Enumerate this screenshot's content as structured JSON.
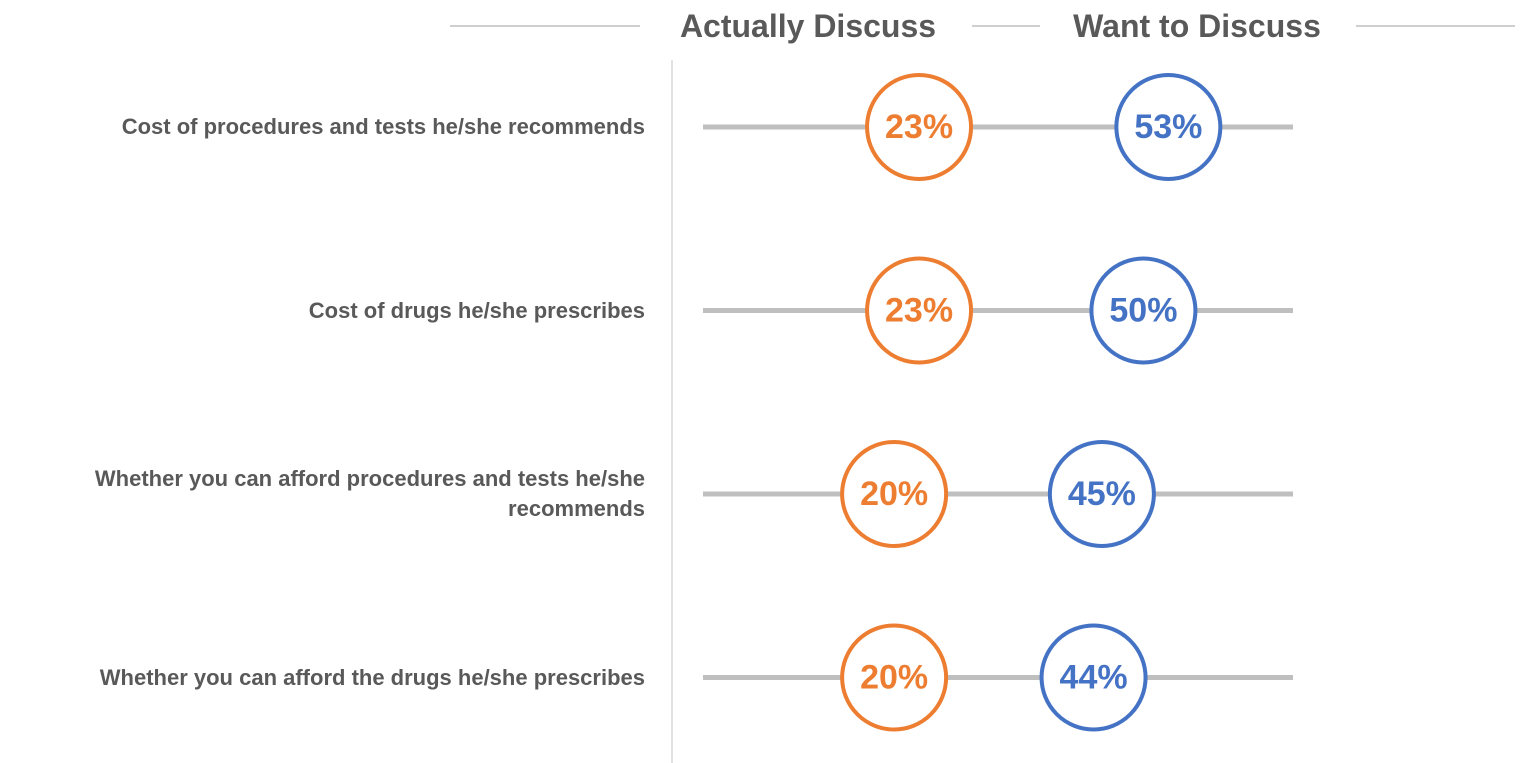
{
  "chart_data": {
    "type": "dot",
    "categories": [
      "Cost of procedures and tests he/she recommends",
      "Cost of drugs he/she prescribes",
      "Whether you can afford procedures and tests he/she recommends",
      "Whether you can afford the drugs he/she prescribes"
    ],
    "series": [
      {
        "name": "Actually Discuss",
        "color": "#ED7D31",
        "values": [
          23,
          23,
          20,
          20
        ],
        "value_labels": [
          "23%",
          "23%",
          "20%",
          "20%"
        ]
      },
      {
        "name": "Want to Discuss",
        "color": "#4472C4",
        "values": [
          53,
          50,
          45,
          44
        ],
        "value_labels": [
          "53%",
          "50%",
          "45%",
          "44%"
        ]
      }
    ],
    "xlim": [
      -3,
      68
    ]
  }
}
